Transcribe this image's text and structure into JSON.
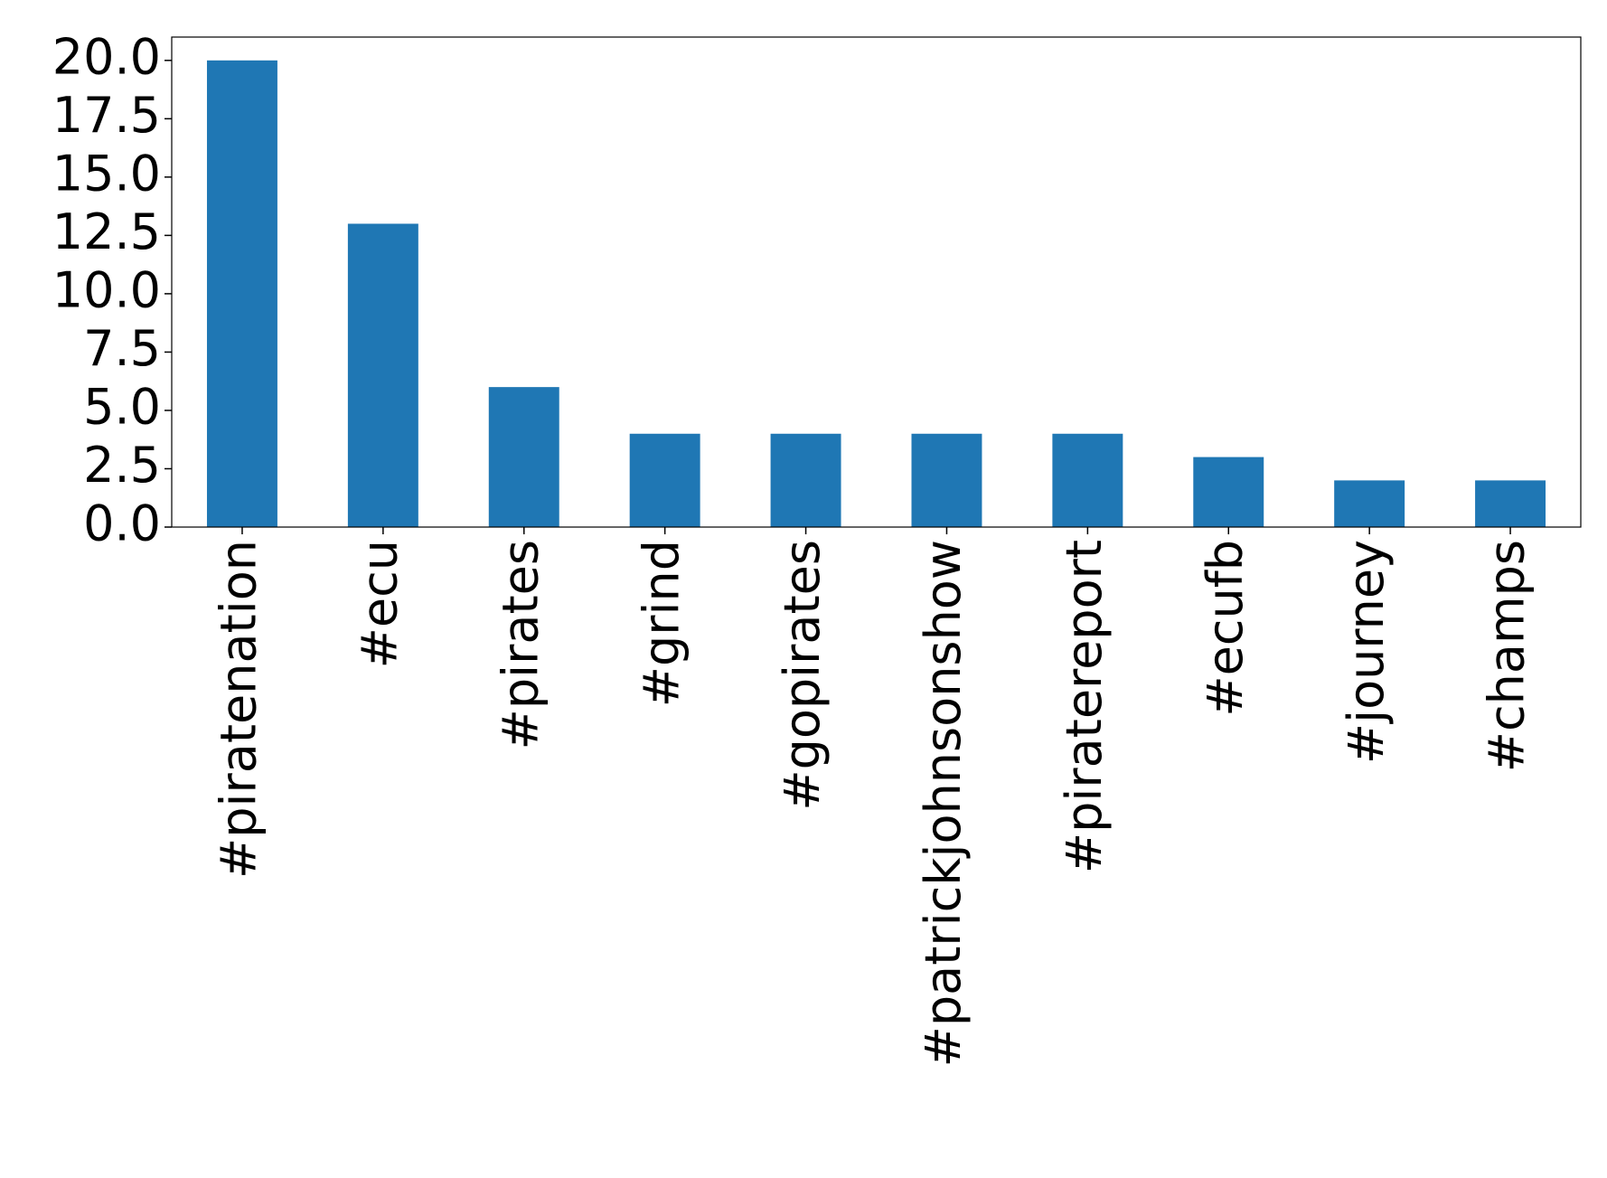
{
  "chart_data": {
    "type": "bar",
    "categories": [
      "#piratenation",
      "#ecu",
      "#pirates",
      "#grind",
      "#gopirates",
      "#patrickjohnsonshow",
      "#piratereport",
      "#ecufb",
      "#journey",
      "#champs"
    ],
    "values": [
      20,
      13,
      6,
      4,
      4,
      4,
      4,
      3,
      2,
      2
    ],
    "color": "#1f77b4",
    "ylim": [
      0,
      21
    ],
    "yticks": [
      {
        "value": 0,
        "label": "0.0"
      },
      {
        "value": 2.5,
        "label": "2.5"
      },
      {
        "value": 5,
        "label": "5.0"
      },
      {
        "value": 7.5,
        "label": "7.5"
      },
      {
        "value": 10,
        "label": "10.0"
      },
      {
        "value": 12.5,
        "label": "12.5"
      },
      {
        "value": 15,
        "label": "15.0"
      },
      {
        "value": 17.5,
        "label": "17.5"
      },
      {
        "value": 20,
        "label": "20.0"
      }
    ],
    "grid": false
  }
}
